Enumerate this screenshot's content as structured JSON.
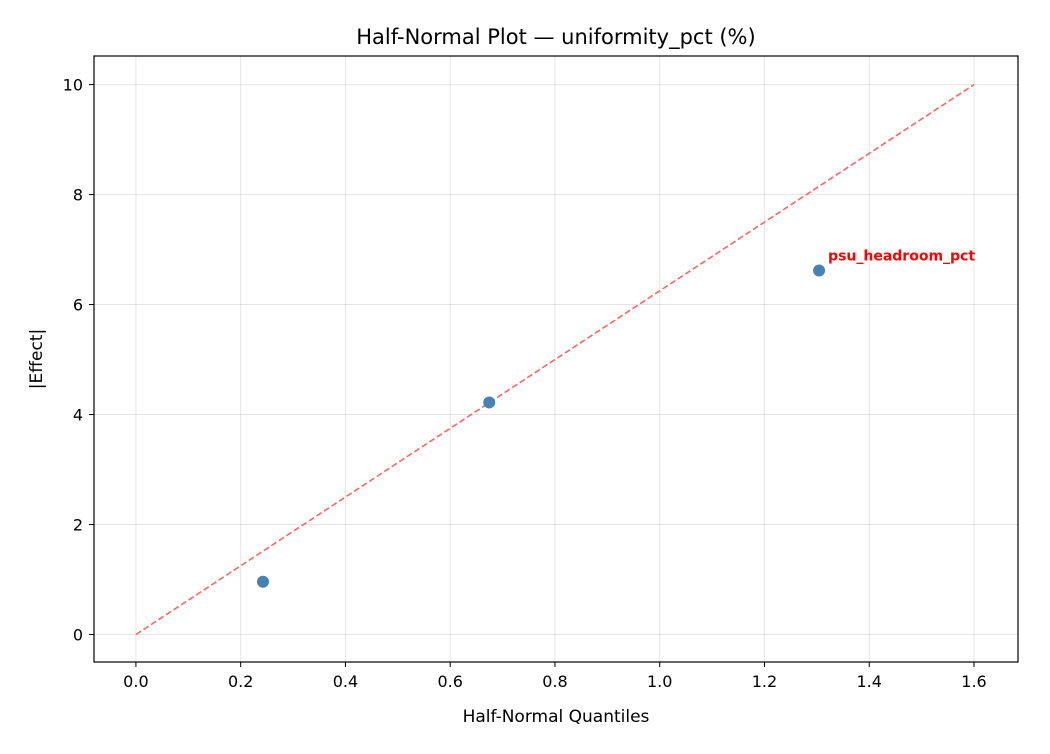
{
  "chart_data": {
    "type": "scatter",
    "title": "Half-Normal Plot — uniformity_pct (%)",
    "xlabel": "Half-Normal Quantiles",
    "ylabel": "|Effect|",
    "xlim": [
      -0.08,
      1.684
    ],
    "ylim": [
      -0.5,
      10.52
    ],
    "xticks": [
      0.0,
      0.2,
      0.4,
      0.6,
      0.8,
      1.0,
      1.2,
      1.4,
      1.6
    ],
    "xtick_labels": [
      "0.0",
      "0.2",
      "0.4",
      "0.6",
      "0.8",
      "1.0",
      "1.2",
      "1.4",
      "1.6"
    ],
    "yticks": [
      0,
      2,
      4,
      6,
      8,
      10
    ],
    "ytick_labels": [
      "0",
      "2",
      "4",
      "6",
      "8",
      "10"
    ],
    "grid": true,
    "points": [
      {
        "x": 0.2426,
        "y": 0.96
      },
      {
        "x": 0.6745,
        "y": 4.22
      },
      {
        "x": 1.3042,
        "y": 6.62,
        "label": "psu_headroom_pct"
      }
    ],
    "reference_line": {
      "x": [
        0,
        1.6
      ],
      "y": [
        0,
        10
      ],
      "style": "dashed",
      "color": "#ff6666"
    },
    "point_color": "#4682b4",
    "annotation_color": "#ff0000"
  }
}
